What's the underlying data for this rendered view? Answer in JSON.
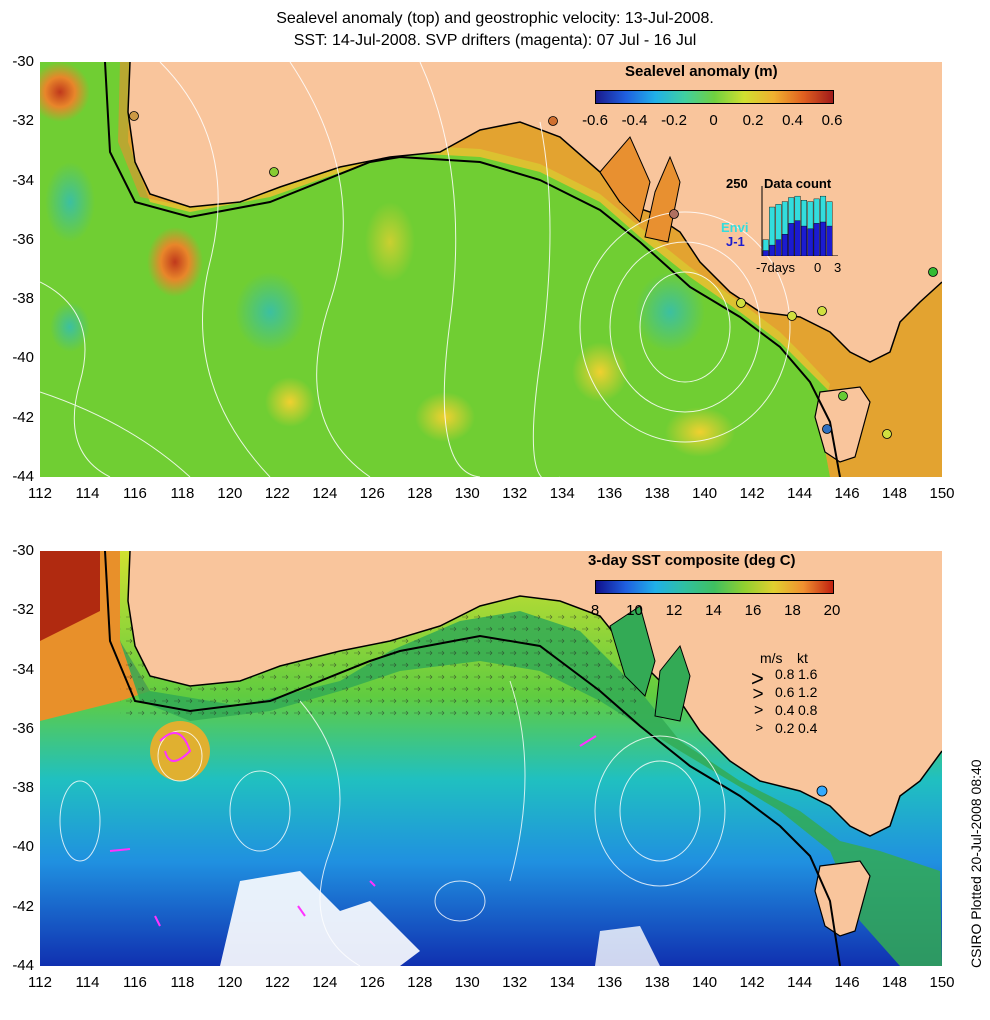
{
  "title": {
    "line1": "Sealevel anomaly (top) and geostrophic velocity: 13-Jul-2008.",
    "line2": "SST: 14-Jul-2008. SVP drifters (magenta): 07 Jul - 16 Jul"
  },
  "axes": {
    "lat_ticks": [
      "-30",
      "-32",
      "-34",
      "-36",
      "-38",
      "-40",
      "-42",
      "-44"
    ],
    "lon_ticks": [
      "112",
      "114",
      "116",
      "118",
      "120",
      "122",
      "124",
      "126",
      "128",
      "130",
      "132",
      "134",
      "136",
      "138",
      "140",
      "142",
      "144",
      "146",
      "148",
      "150"
    ],
    "lon_range": [
      112,
      150
    ],
    "lat_range": [
      -44,
      -30
    ]
  },
  "top_panel": {
    "colorbar_title": "Sealevel anomaly (m)",
    "colorbar_ticks": [
      "-0.6",
      "-0.4",
      "-0.2",
      "0",
      "0.2",
      "0.4",
      "0.6"
    ],
    "land_color": "#f9c59c",
    "inset": {
      "title": "Data count",
      "ymax": "250",
      "x_labels": [
        "-7days",
        "0",
        "3"
      ],
      "series": [
        {
          "name": "Envi",
          "color": "#33dddd",
          "values": [
            60,
            180,
            190,
            200,
            215,
            220,
            205,
            200,
            210,
            220,
            200
          ]
        },
        {
          "name": "J-1",
          "color": "#1b1bd0",
          "values": [
            20,
            40,
            60,
            80,
            120,
            130,
            110,
            100,
            120,
            125,
            110
          ]
        }
      ]
    }
  },
  "bottom_panel": {
    "colorbar_title": "3-day SST composite (deg C)",
    "colorbar_ticks": [
      "8",
      "10",
      "12",
      "14",
      "16",
      "18",
      "20"
    ],
    "velocity_legend": {
      "header_ms": "m/s",
      "header_kt": "kt",
      "rows": [
        {
          "ms": "0.8",
          "kt": "1.6"
        },
        {
          "ms": "0.6",
          "kt": "1.2"
        },
        {
          "ms": "0.4",
          "kt": "0.8"
        },
        {
          "ms": "0.2",
          "kt": "0.4"
        }
      ]
    }
  },
  "footer": {
    "credit": "CSIRO Plotted 20-Jul-2008 08:40"
  },
  "colors": {
    "land": "#f9c59c",
    "coast": "#000000",
    "contour": "#ffffff",
    "drifter": "#ff33ff"
  }
}
